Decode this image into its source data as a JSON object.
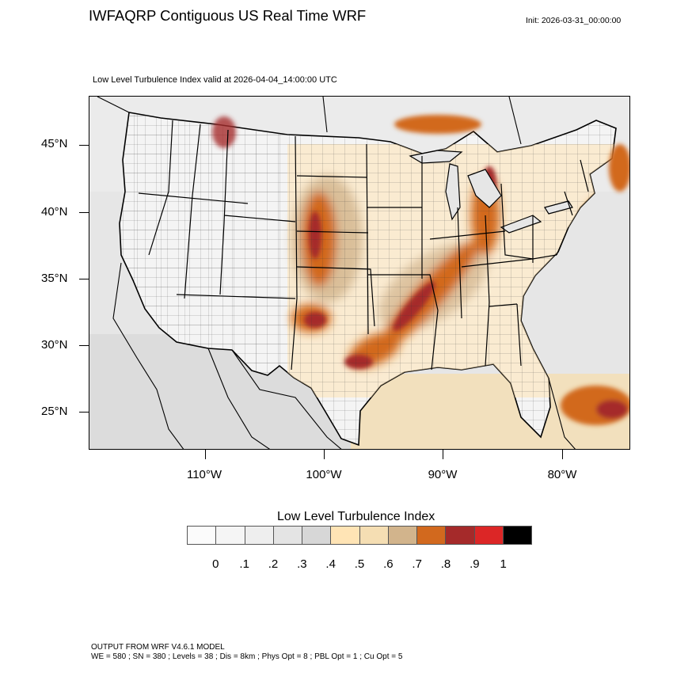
{
  "header": {
    "title": "IWFAQRP Contiguous US Real Time WRF",
    "init": "Init: 2026-03-31_00:00:00",
    "subtitle": "Low Level Turbulence Index valid at 2026-04-04_14:00:00 UTC"
  },
  "map": {
    "lat_labels": [
      "45°N",
      "40°N",
      "35°N",
      "30°N",
      "25°N"
    ],
    "lon_labels": [
      "110°W",
      "100°W",
      "90°W",
      "80°W"
    ],
    "background_color": "#e6e6e6",
    "land_color": "#f4f4f4",
    "boundary_color": "#000000"
  },
  "colorbar": {
    "title": "Low Level Turbulence Index",
    "colors": [
      "#fbfbfb",
      "#f5f5f5",
      "#eeeeee",
      "#e4e4e4",
      "#d7d7d7",
      "#ffe4b5",
      "#f5deb3",
      "#d2b48c",
      "#d2691e",
      "#a52a2a",
      "#dc2626",
      "#000000"
    ],
    "labels": [
      "0",
      ".1",
      ".2",
      ".3",
      ".4",
      ".5",
      ".6",
      ".7",
      ".8",
      ".9",
      "1"
    ]
  },
  "footer": {
    "line1": "OUTPUT FROM WRF V4.6.1 MODEL",
    "line2": "WE = 580 ; SN = 380 ; Levels = 38 ; Dis = 8km ; Phys Opt = 8 ; PBL Opt = 1 ; Cu Opt = 5"
  }
}
